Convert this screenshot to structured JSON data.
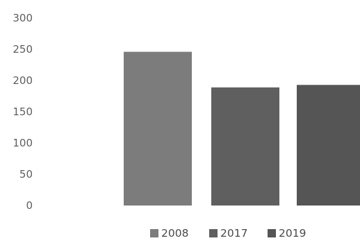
{
  "chart_data": {
    "type": "bar",
    "title": "",
    "xlabel": "",
    "ylabel": "",
    "categories": [
      "2008",
      "2017",
      "2019"
    ],
    "values": [
      246,
      189,
      193
    ],
    "ylim": [
      0,
      300
    ],
    "yticks": [
      "0",
      "50",
      "100",
      "150",
      "200",
      "250",
      "300"
    ],
    "grid": false,
    "legend": {
      "position": "bottom",
      "entries": [
        "2008",
        "2017",
        "2019"
      ]
    },
    "colors": [
      "#7c7c7c",
      "#5f5f5f",
      "#555555"
    ]
  }
}
